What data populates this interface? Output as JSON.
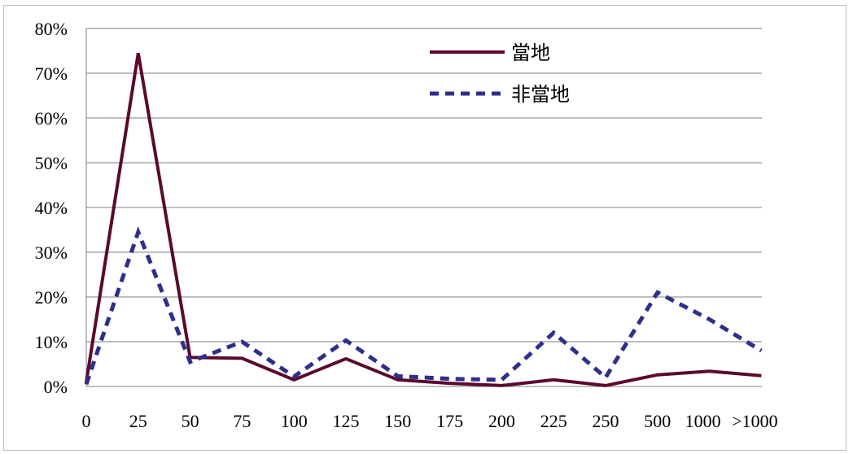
{
  "chart_data": {
    "type": "line",
    "categories": [
      "0",
      "25",
      "50",
      "75",
      "100",
      "125",
      "150",
      "175",
      "200",
      "225",
      "250",
      "500",
      "1000",
      ">1000"
    ],
    "y_ticks": [
      "0%",
      "10%",
      "20%",
      "30%",
      "40%",
      "50%",
      "60%",
      "70%",
      "80%"
    ],
    "ylim": [
      0,
      80
    ],
    "grid": true,
    "legend_position": "top-right",
    "series": [
      {
        "name": "當地",
        "color": "#5a0a2e",
        "style": "solid",
        "values": [
          1,
          74.5,
          6.5,
          6.3,
          1.5,
          6.2,
          1.5,
          0.7,
          0.2,
          1.5,
          0.2,
          2.6,
          3.4,
          2.4
        ]
      },
      {
        "name": "非當地",
        "color": "#2e2f8a",
        "style": "dashed",
        "values": [
          0.5,
          34.5,
          5.5,
          10,
          2.2,
          10.3,
          2.3,
          1.7,
          1.5,
          12,
          2,
          21,
          15,
          8
        ]
      }
    ]
  }
}
